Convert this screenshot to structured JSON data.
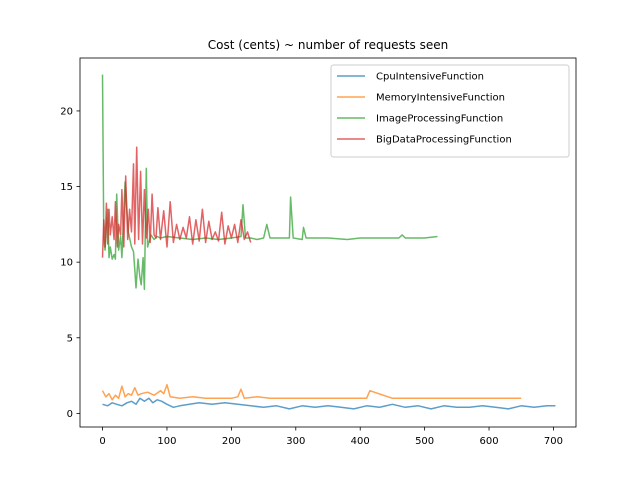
{
  "chart_data": {
    "type": "line",
    "title": "Cost (cents) ~ number of requests seen",
    "xlabel": "",
    "ylabel": "",
    "xlim": [
      -35,
      735
    ],
    "ylim": [
      -0.9,
      23.5
    ],
    "x_ticks": [
      0,
      100,
      200,
      300,
      400,
      500,
      600,
      700
    ],
    "y_ticks": [
      0,
      5,
      10,
      15,
      20
    ],
    "grid": false,
    "legend_position": "top-right",
    "series": [
      {
        "name": "CpuIntensiveFunction",
        "color": "#1f77b4",
        "x": [
          0,
          8,
          15,
          22,
          30,
          38,
          45,
          52,
          58,
          65,
          72,
          78,
          85,
          92,
          100,
          110,
          120,
          135,
          150,
          170,
          190,
          210,
          230,
          250,
          270,
          290,
          310,
          330,
          350,
          370,
          390,
          410,
          430,
          450,
          470,
          490,
          510,
          530,
          550,
          570,
          590,
          610,
          630,
          650,
          670,
          690,
          703
        ],
        "y": [
          0.6,
          0.5,
          0.7,
          0.6,
          0.5,
          0.7,
          0.8,
          0.6,
          1.0,
          0.8,
          1.0,
          0.7,
          0.9,
          0.8,
          0.6,
          0.4,
          0.5,
          0.6,
          0.7,
          0.6,
          0.7,
          0.6,
          0.5,
          0.4,
          0.5,
          0.3,
          0.5,
          0.4,
          0.5,
          0.4,
          0.3,
          0.5,
          0.4,
          0.6,
          0.4,
          0.5,
          0.3,
          0.5,
          0.4,
          0.4,
          0.5,
          0.4,
          0.3,
          0.5,
          0.4,
          0.5,
          0.5
        ]
      },
      {
        "name": "MemoryIntensiveFunction",
        "color": "#ff7f0e",
        "x": [
          0,
          5,
          10,
          15,
          20,
          25,
          30,
          35,
          40,
          45,
          50,
          55,
          60,
          70,
          80,
          90,
          95,
          100,
          105,
          120,
          140,
          160,
          180,
          200,
          210,
          215,
          220,
          240,
          260,
          300,
          350,
          400,
          410,
          415,
          450,
          500,
          550,
          600,
          650
        ],
        "y": [
          1.5,
          1.1,
          1.3,
          0.9,
          1.2,
          1.0,
          1.8,
          1.1,
          1.3,
          1.2,
          1.7,
          1.2,
          1.3,
          1.4,
          1.2,
          1.5,
          1.3,
          1.9,
          1.1,
          1.0,
          1.1,
          1.0,
          1.0,
          1.0,
          1.1,
          1.6,
          1.0,
          1.1,
          1.0,
          1.0,
          1.0,
          1.0,
          1.0,
          1.5,
          1.0,
          1.0,
          1.0,
          1.0,
          1.0
        ]
      },
      {
        "name": "ImageProcessingFunction",
        "color": "#2ca02c",
        "x": [
          0,
          2,
          4,
          6,
          8,
          10,
          12,
          15,
          18,
          20,
          22,
          25,
          28,
          30,
          35,
          40,
          45,
          48,
          50,
          52,
          55,
          58,
          60,
          63,
          65,
          68,
          70,
          75,
          80,
          85,
          90,
          100,
          120,
          140,
          160,
          180,
          200,
          215,
          218,
          222,
          230,
          240,
          250,
          255,
          260,
          280,
          290,
          292,
          296,
          310,
          312,
          316,
          330,
          350,
          380,
          400,
          430,
          460,
          465,
          470,
          500,
          520
        ],
        "y": [
          22.4,
          11.5,
          10.8,
          12.5,
          13.5,
          10.3,
          11.0,
          10.2,
          10.5,
          10.2,
          14.5,
          10.8,
          11.7,
          10.3,
          15.3,
          12.0,
          11.0,
          10.7,
          9.5,
          8.3,
          10.2,
          9.0,
          8.5,
          10.3,
          8.2,
          16.2,
          11.0,
          11.8,
          11.5,
          11.7,
          11.6,
          11.7,
          11.6,
          11.5,
          11.6,
          11.5,
          11.6,
          11.7,
          13.8,
          11.6,
          11.6,
          11.5,
          11.6,
          12.5,
          11.6,
          11.6,
          11.6,
          14.3,
          11.6,
          11.5,
          12.3,
          11.6,
          11.6,
          11.6,
          11.5,
          11.6,
          11.6,
          11.6,
          11.8,
          11.6,
          11.6,
          11.7
        ]
      },
      {
        "name": "BigDataProcessingFunction",
        "color": "#d62728",
        "x": [
          0,
          2,
          4,
          6,
          8,
          10,
          12,
          15,
          18,
          20,
          23,
          25,
          28,
          30,
          33,
          36,
          39,
          42,
          45,
          48,
          50,
          53,
          56,
          59,
          62,
          65,
          68,
          71,
          74,
          77,
          80,
          83,
          86,
          90,
          95,
          100,
          105,
          110,
          115,
          120,
          125,
          130,
          135,
          140,
          145,
          150,
          155,
          160,
          165,
          170,
          175,
          180,
          185,
          190,
          195,
          200,
          205,
          210,
          215,
          220,
          225,
          230
        ],
        "y": [
          10.3,
          12.8,
          11.0,
          13.9,
          11.2,
          13.5,
          11.8,
          13.0,
          11.5,
          14.0,
          11.0,
          12.5,
          11.8,
          14.8,
          11.0,
          15.7,
          11.5,
          13.5,
          12.0,
          16.5,
          11.2,
          17.6,
          11.5,
          16.0,
          11.2,
          14.8,
          11.6,
          13.5,
          11.3,
          14.5,
          11.8,
          11.6,
          13.6,
          11.5,
          13.4,
          11.0,
          14.0,
          11.3,
          12.5,
          11.5,
          12.3,
          11.6,
          13.0,
          11.2,
          12.8,
          11.4,
          13.5,
          11.3,
          12.7,
          11.5,
          12.0,
          11.4,
          13.3,
          11.2,
          12.4,
          11.6,
          12.5,
          11.3,
          12.8,
          11.5,
          12.0,
          11.3
        ]
      }
    ]
  }
}
